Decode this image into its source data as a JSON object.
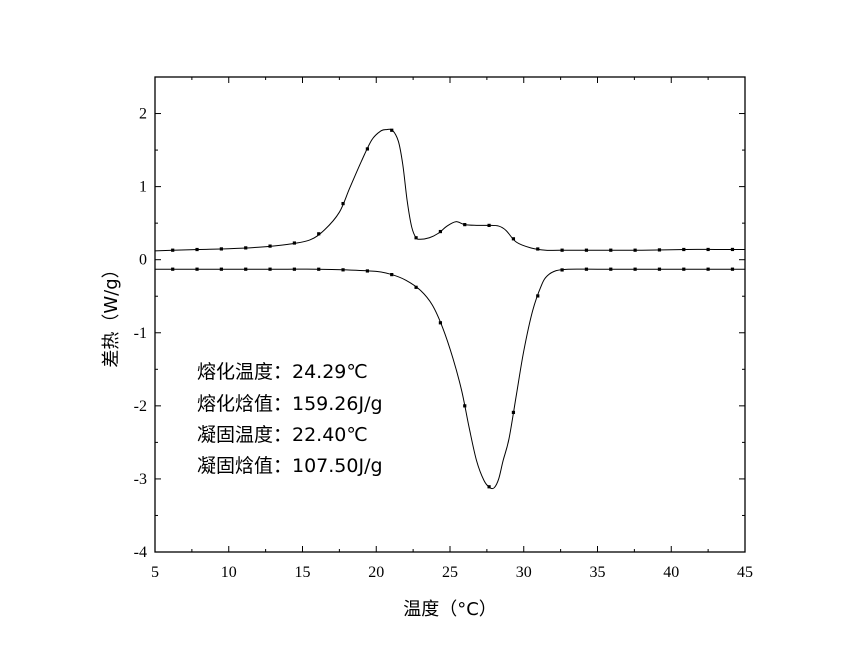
{
  "chart_data": {
    "type": "line",
    "title": "",
    "xlabel": "温度（°C）",
    "ylabel": "差热（W/g）",
    "xlim": [
      5,
      45
    ],
    "ylim": [
      -4,
      2.5
    ],
    "xticks": [
      5,
      10,
      15,
      20,
      25,
      30,
      35,
      40,
      45
    ],
    "yticks": [
      -4,
      -3,
      -2,
      -1,
      0,
      1,
      2
    ],
    "grid": false,
    "legend": "none",
    "series": [
      {
        "x": [
          5,
          6.2,
          8,
          10,
          12,
          14,
          15.5,
          16.5,
          17.5,
          18.2,
          19,
          19.7,
          20.3,
          20.7,
          21.1,
          21.5,
          21.8,
          22.1,
          22.4,
          22.7,
          23,
          23.6,
          24.2,
          24.8,
          25.4,
          26,
          26.8,
          27.6,
          28.3,
          28.8,
          29.5,
          30.5,
          31.5,
          33,
          35,
          38,
          41,
          43,
          45
        ],
        "values": [
          0.12,
          0.13,
          0.14,
          0.15,
          0.17,
          0.21,
          0.27,
          0.41,
          0.65,
          0.98,
          1.35,
          1.64,
          1.76,
          1.78,
          1.77,
          1.62,
          1.3,
          0.8,
          0.45,
          0.3,
          0.28,
          0.3,
          0.36,
          0.46,
          0.52,
          0.48,
          0.47,
          0.47,
          0.46,
          0.4,
          0.24,
          0.16,
          0.13,
          0.13,
          0.13,
          0.13,
          0.14,
          0.14,
          0.14
        ]
      },
      {
        "x": [
          5,
          6.2,
          8,
          10,
          12,
          14,
          16,
          18,
          20,
          21,
          22,
          23,
          23.8,
          24.5,
          25.2,
          25.8,
          26.3,
          26.8,
          27.3,
          27.7,
          28,
          28.3,
          28.6,
          29,
          29.5,
          30,
          30.6,
          31.2,
          31.6,
          32.2,
          33,
          35,
          38,
          41,
          43,
          45
        ],
        "values": [
          -0.13,
          -0.13,
          -0.13,
          -0.13,
          -0.13,
          -0.13,
          -0.13,
          -0.14,
          -0.16,
          -0.2,
          -0.28,
          -0.42,
          -0.62,
          -0.93,
          -1.35,
          -1.8,
          -2.3,
          -2.75,
          -3.02,
          -3.12,
          -3.12,
          -3.0,
          -2.75,
          -2.45,
          -1.85,
          -1.25,
          -0.7,
          -0.35,
          -0.22,
          -0.15,
          -0.13,
          -0.13,
          -0.13,
          -0.13,
          -0.13,
          -0.13
        ]
      }
    ],
    "annotations": [
      "熔化温度：24.29℃",
      "熔化焓值：159.26J/g",
      "凝固温度：22.40℃",
      "凝固焓值：107.50J/g"
    ]
  }
}
